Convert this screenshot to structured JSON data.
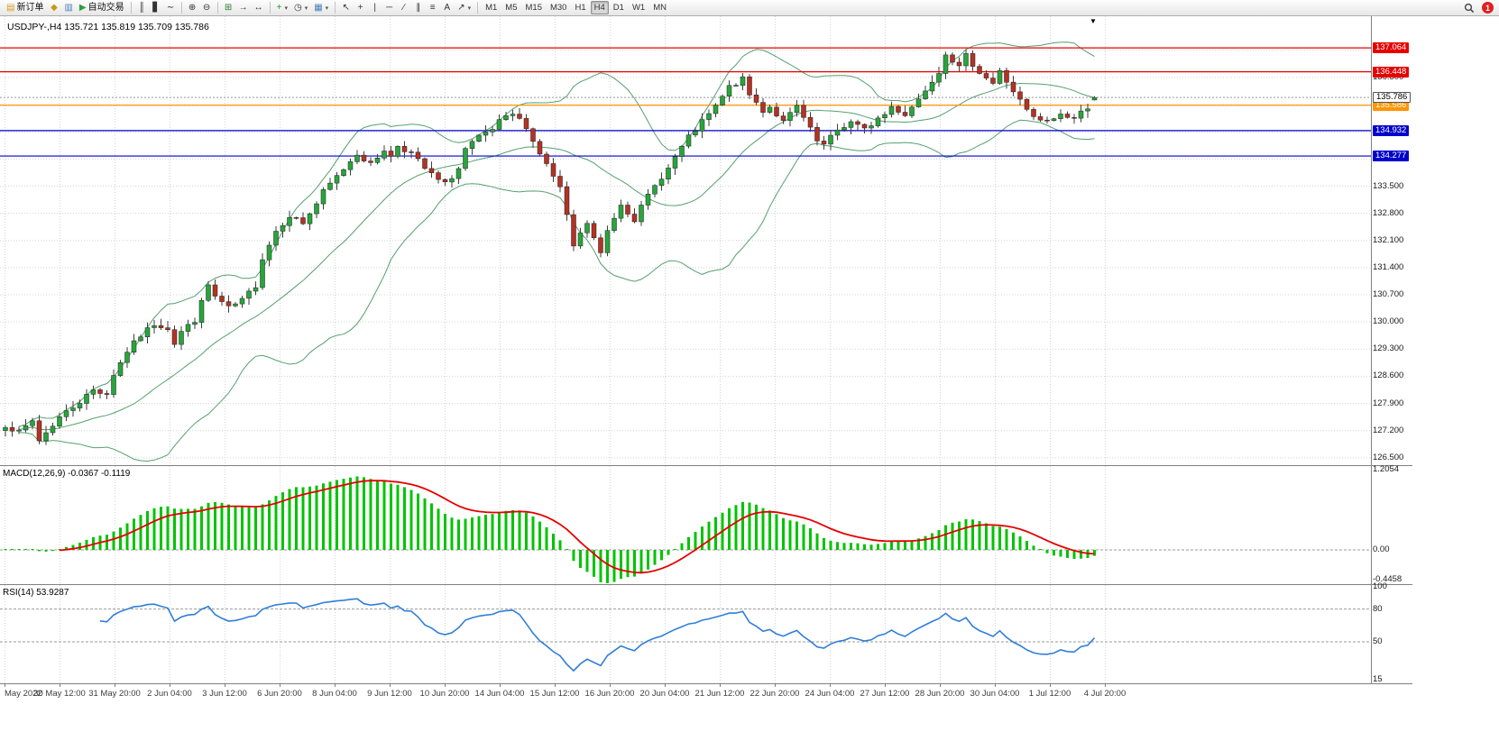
{
  "toolbar": {
    "button_groups": [
      {
        "name": "trade",
        "items": [
          {
            "name": "new-order-button",
            "glyph": "▤",
            "glyph_color": "#d4a017",
            "label": "新订单"
          },
          {
            "name": "metaeditor-button",
            "glyph": "◆",
            "glyph_color": "#c79810"
          },
          {
            "name": "terminal-button",
            "glyph": "▥",
            "glyph_color": "#4a7ebb"
          },
          {
            "name": "autotrading-button",
            "glyph": "▶",
            "glyph_color": "#2e9e3f",
            "label": "自动交易"
          }
        ]
      },
      {
        "name": "chart-type",
        "items": [
          {
            "name": "bar-chart-button",
            "glyph": "║",
            "glyph_color": "#333333"
          },
          {
            "name": "candlestick-button",
            "glyph": "▋",
            "glyph_color": "#333333"
          },
          {
            "name": "line-chart-button",
            "glyph": "∼",
            "glyph_color": "#333333"
          }
        ]
      },
      {
        "name": "zoom",
        "items": [
          {
            "name": "zoom-in-button",
            "glyph": "⊕",
            "glyph_color": "#333333"
          },
          {
            "name": "zoom-out-button",
            "glyph": "⊖",
            "glyph_color": "#333333"
          }
        ]
      },
      {
        "name": "window-tools",
        "items": [
          {
            "name": "tile-windows-button",
            "glyph": "⊞",
            "glyph_color": "#2e7d32"
          },
          {
            "name": "auto-scroll-button",
            "glyph": "→",
            "glyph_color": "#333333"
          },
          {
            "name": "chart-shift-button",
            "glyph": "↔",
            "glyph_color": "#333333"
          }
        ]
      },
      {
        "name": "insert",
        "items": [
          {
            "name": "indicators-button",
            "glyph": "+",
            "glyph_color": "#1e9e1e",
            "dropdown": true
          },
          {
            "name": "periods-button",
            "glyph": "◷",
            "glyph_color": "#333333",
            "dropdown": true
          },
          {
            "name": "templates-button",
            "glyph": "▦",
            "glyph_color": "#4a7ebb",
            "dropdown": true
          }
        ]
      },
      {
        "name": "drawing",
        "items": [
          {
            "name": "cursor-button",
            "glyph": "↖",
            "glyph_color": "#333333"
          },
          {
            "name": "crosshair-button",
            "glyph": "+",
            "glyph_color": "#333333"
          },
          {
            "name": "vertical-line-button",
            "glyph": "|",
            "glyph_color": "#333333"
          },
          {
            "name": "horizontal-line-button",
            "glyph": "─",
            "glyph_color": "#333333"
          },
          {
            "name": "trendline-button",
            "glyph": "∕",
            "glyph_color": "#333333"
          },
          {
            "name": "channel-button",
            "glyph": "∥",
            "glyph_color": "#333333"
          },
          {
            "name": "fibonacci-button",
            "glyph": "≡",
            "glyph_color": "#333333"
          },
          {
            "name": "text-button",
            "glyph": "A",
            "glyph_color": "#333333"
          },
          {
            "name": "arrows-button",
            "glyph": "↗",
            "glyph_color": "#333333",
            "dropdown": true
          }
        ]
      }
    ],
    "timeframes": {
      "options": [
        "M1",
        "M5",
        "M15",
        "M30",
        "H1",
        "H4",
        "D1",
        "W1",
        "MN"
      ],
      "active": "H4"
    },
    "notification_count": "1"
  },
  "chart": {
    "title": "USDJPY-,H4  135.721 135.819 135.709 135.786",
    "shift_marker_glyph": "▼"
  },
  "chart_data": [
    {
      "type": "candlestick",
      "symbol": "USDJPY-",
      "timeframe": "H4",
      "ohlc_current": {
        "open": 135.721,
        "high": 135.819,
        "low": 135.709,
        "close": 135.786
      },
      "overlays": [
        {
          "name": "bollinger-bands",
          "period": 20,
          "deviation": 2,
          "color": "#55a06e"
        }
      ],
      "y_axis": {
        "tick_labels": [
          "137.000",
          "136.300",
          "135.600",
          "134.900",
          "134.200",
          "133.500",
          "132.800",
          "132.100",
          "131.400",
          "130.700",
          "130.000",
          "129.300",
          "128.600",
          "127.900",
          "127.200",
          "126.500"
        ],
        "range": [
          126.31,
          137.88
        ]
      },
      "x_axis": {
        "labels": [
          "May 2022",
          "30 May 12:00",
          "31 May 20:00",
          "2 Jun 04:00",
          "3 Jun 12:00",
          "6 Jun 20:00",
          "8 Jun 04:00",
          "9 Jun 12:00",
          "10 Jun 20:00",
          "14 Jun 04:00",
          "15 Jun 12:00",
          "16 Jun 20:00",
          "20 Jun 04:00",
          "21 Jun 12:00",
          "22 Jun 20:00",
          "24 Jun 04:00",
          "27 Jun 12:00",
          "28 Jun 20:00",
          "30 Jun 04:00",
          "1 Jul 12:00",
          "4 Jul 20:00"
        ]
      },
      "bars_total": 162,
      "price_path_anchors": [
        [
          0,
          127.35
        ],
        [
          2,
          127.15
        ],
        [
          4,
          127.45
        ],
        [
          5,
          126.95
        ],
        [
          8,
          127.55
        ],
        [
          11,
          127.95
        ],
        [
          13,
          128.25
        ],
        [
          15,
          128.15
        ],
        [
          16,
          128.65
        ],
        [
          18,
          129.25
        ],
        [
          20,
          129.65
        ],
        [
          22,
          129.95
        ],
        [
          24,
          129.85
        ],
        [
          25,
          129.45
        ],
        [
          26,
          129.75
        ],
        [
          28,
          130.05
        ],
        [
          30,
          130.95
        ],
        [
          31,
          130.65
        ],
        [
          33,
          130.35
        ],
        [
          35,
          130.55
        ],
        [
          37,
          130.95
        ],
        [
          38,
          131.65
        ],
        [
          40,
          132.35
        ],
        [
          42,
          132.75
        ],
        [
          44,
          132.55
        ],
        [
          46,
          133.05
        ],
        [
          47,
          133.35
        ],
        [
          48,
          133.55
        ],
        [
          50,
          133.95
        ],
        [
          52,
          134.35
        ],
        [
          54,
          134.05
        ],
        [
          56,
          134.45
        ],
        [
          57,
          134.25
        ],
        [
          58,
          134.55
        ],
        [
          60,
          134.35
        ],
        [
          62,
          133.95
        ],
        [
          64,
          133.65
        ],
        [
          65,
          133.55
        ],
        [
          67,
          133.95
        ],
        [
          68,
          134.45
        ],
        [
          70,
          134.75
        ],
        [
          72,
          134.95
        ],
        [
          73,
          135.15
        ],
        [
          75,
          135.35
        ],
        [
          77,
          135.05
        ],
        [
          78,
          134.65
        ],
        [
          80,
          134.05
        ],
        [
          82,
          133.45
        ],
        [
          84,
          131.95
        ],
        [
          86,
          132.55
        ],
        [
          88,
          131.75
        ],
        [
          89,
          132.35
        ],
        [
          91,
          133.05
        ],
        [
          93,
          132.65
        ],
        [
          95,
          133.25
        ],
        [
          97,
          133.75
        ],
        [
          98,
          133.95
        ],
        [
          99,
          134.25
        ],
        [
          101,
          134.75
        ],
        [
          103,
          135.15
        ],
        [
          105,
          135.55
        ],
        [
          107,
          136.05
        ],
        [
          109,
          136.25
        ],
        [
          110,
          135.85
        ],
        [
          112,
          135.45
        ],
        [
          113,
          135.55
        ],
        [
          115,
          135.15
        ],
        [
          117,
          135.55
        ],
        [
          119,
          134.95
        ],
        [
          120,
          134.65
        ],
        [
          121,
          134.55
        ],
        [
          123,
          134.95
        ],
        [
          125,
          135.15
        ],
        [
          127,
          134.95
        ],
        [
          129,
          135.25
        ],
        [
          130,
          135.35
        ],
        [
          131,
          135.55
        ],
        [
          133,
          135.35
        ],
        [
          135,
          135.75
        ],
        [
          137,
          136.25
        ],
        [
          138,
          136.45
        ],
        [
          139,
          136.95
        ],
        [
          141,
          136.55
        ],
        [
          142,
          136.85
        ],
        [
          144,
          136.45
        ],
        [
          146,
          136.15
        ],
        [
          147,
          136.45
        ],
        [
          149,
          135.95
        ],
        [
          151,
          135.45
        ],
        [
          152,
          135.25
        ],
        [
          154,
          135.15
        ],
        [
          156,
          135.35
        ],
        [
          158,
          135.25
        ],
        [
          160,
          135.55
        ],
        [
          161,
          135.786
        ]
      ],
      "horizontal_lines": [
        {
          "price": 137.064,
          "label": "137.064",
          "color": "#e60000"
        },
        {
          "price": 136.448,
          "label": "136.448",
          "color": "#e60000"
        },
        {
          "price": 135.586,
          "label": "135.586",
          "color": "#ff9500"
        },
        {
          "price": 134.932,
          "label": "134.932",
          "color": "#0000cc"
        },
        {
          "price": 134.277,
          "label": "134.277",
          "color": "#0000cc"
        }
      ],
      "current_price": {
        "value": 135.786,
        "label": "135.786"
      },
      "candle_up_color": "#28a53c",
      "candle_down_color": "#b43224"
    },
    {
      "type": "macd",
      "label": "MACD(12,26,9) -0.0367 -0.1119",
      "params": {
        "fast": 12,
        "slow": 26,
        "signal": 9
      },
      "current_values": [
        -0.0367,
        -0.1119
      ],
      "y_axis": {
        "tick_labels": [
          "1.2054",
          "0.00",
          "-0.4458"
        ],
        "tick_values": [
          1.2054,
          0,
          -0.4458
        ],
        "range": [
          -0.515,
          1.26
        ]
      },
      "histogram_color": "#00c400",
      "signal_color": "#e60000"
    },
    {
      "type": "rsi",
      "label": "RSI(14) 53.9287",
      "period": 14,
      "current_value": 53.9287,
      "y_axis": {
        "tick_labels": [
          "100",
          "80",
          "50",
          "15"
        ],
        "tick_values": [
          100,
          80,
          50,
          15
        ],
        "range": [
          12,
          102
        ]
      },
      "levels": [
        80,
        50
      ],
      "line_color": "#2f7ed8"
    }
  ]
}
